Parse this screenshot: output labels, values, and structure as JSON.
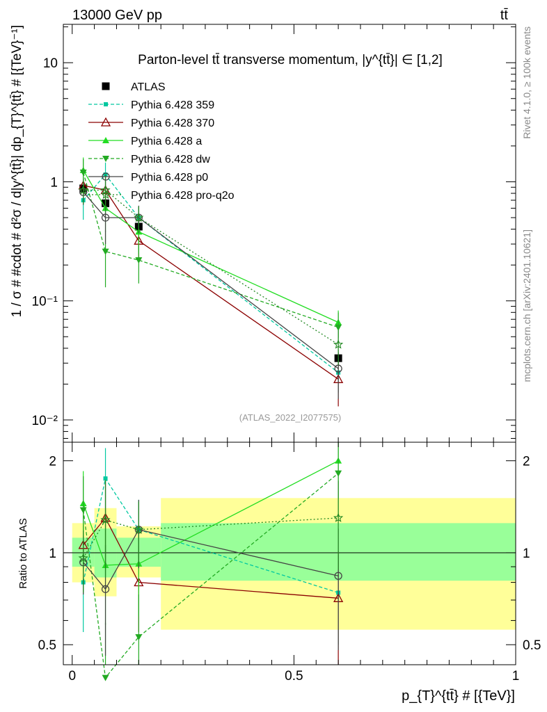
{
  "header": {
    "energy_label": "13000 GeV pp",
    "process_label": "tt̄",
    "rivet_label": "Rivet 4.1.0, ≥ 100k events",
    "mcplots_label": "mcplots.cern.ch [arXiv:2401.10621]",
    "analysis_id": "(ATLAS_2022_I2077575)"
  },
  "colors": {
    "ATLAS": "#000000",
    "p359": "#00c8a0",
    "p370": "#8b0000",
    "pa": "#22dd22",
    "pdw": "#22aa22",
    "pp0": "#444444",
    "pq2o": "#228822",
    "band_yellow": "#ffff99",
    "band_green": "#99ff99"
  },
  "chart_data": [
    {
      "panel": "main",
      "type": "line",
      "title": "Parton-level tt̄ transverse momentum, |y^{tt̄}| ∈ [1,2]",
      "ylabel": "1 / σ # #cdot # d²σ / d|y^{tt̄}| dp_{T}^{tt̄} # [{TeV}⁻¹]",
      "yscale": "log",
      "ylim": [
        0.0065,
        21
      ],
      "xlim": [
        -0.02,
        1.0
      ],
      "ytick_labels": [
        "10⁻²",
        "10⁻¹",
        "1",
        "10"
      ],
      "ytick_values": [
        0.01,
        0.1,
        1,
        10
      ],
      "x": [
        0.025,
        0.075,
        0.15,
        0.6
      ],
      "series": [
        {
          "name": "ATLAS",
          "values": [
            0.88,
            0.66,
            0.42,
            0.033
          ],
          "errors": [
            0.06,
            0.06,
            0.04,
            0.004
          ]
        },
        {
          "name": "Pythia 6.428 359",
          "values": [
            0.7,
            1.15,
            0.5,
            0.025
          ],
          "errors": [
            0.22,
            0.3,
            0.12,
            0.008
          ]
        },
        {
          "name": "Pythia 6.428 370",
          "values": [
            0.93,
            0.85,
            0.32,
            0.022
          ],
          "errors": [
            0.15,
            0.25,
            0.1,
            0.009
          ]
        },
        {
          "name": "Pythia 6.428 a",
          "values": [
            1.25,
            0.6,
            0.38,
            0.066
          ],
          "errors": [
            0.35,
            0.22,
            0.13,
            0.017
          ]
        },
        {
          "name": "Pythia 6.428 dw",
          "values": [
            1.2,
            0.26,
            0.22,
            0.06
          ],
          "errors": [
            0.35,
            0.13,
            0.08,
            0.02
          ]
        },
        {
          "name": "Pythia 6.428 p0",
          "values": [
            0.82,
            0.5,
            0.5,
            0.027
          ],
          "errors": [
            0.18,
            0.2,
            0.13,
            0.012
          ]
        },
        {
          "name": "Pythia 6.428 pro-q2o",
          "values": [
            0.85,
            0.85,
            0.5,
            0.043
          ],
          "errors": [
            0.2,
            0.3,
            0.12,
            0.014
          ]
        }
      ]
    },
    {
      "panel": "ratio",
      "type": "line",
      "ylabel": "Ratio to ATLAS",
      "xlabel": "p_{T}^{tt̄} # [{TeV}]",
      "ylim": [
        0.43,
        2.3
      ],
      "xlim": [
        -0.02,
        1.0
      ],
      "ytick_labels": [
        "0.5",
        "1",
        "2"
      ],
      "ytick_values": [
        0.5,
        1,
        2
      ],
      "xtick_labels": [
        "0",
        "0.5",
        "1"
      ],
      "xtick_values": [
        0,
        0.5,
        1
      ],
      "bands": [
        {
          "x": [
            0.0,
            0.05
          ],
          "yellow": [
            0.8,
            1.25
          ],
          "green": [
            0.9,
            1.12
          ]
        },
        {
          "x": [
            0.05,
            0.1
          ],
          "yellow": [
            0.72,
            1.4
          ],
          "green": [
            0.83,
            1.2
          ]
        },
        {
          "x": [
            0.1,
            0.2
          ],
          "yellow": [
            0.83,
            1.22
          ],
          "green": [
            0.9,
            1.12
          ]
        },
        {
          "x": [
            0.2,
            1.0
          ],
          "yellow": [
            0.56,
            1.51
          ],
          "green": [
            0.81,
            1.25
          ]
        }
      ],
      "x": [
        0.025,
        0.075,
        0.15,
        0.6
      ],
      "series": [
        {
          "name": "Pythia 6.428 359",
          "values": [
            0.8,
            1.75,
            1.19,
            0.74
          ],
          "errors": [
            0.25,
            0.45,
            0.3,
            0.24
          ]
        },
        {
          "name": "Pythia 6.428 370",
          "values": [
            1.06,
            1.3,
            0.8,
            0.71
          ],
          "errors": [
            0.17,
            0.4,
            0.25,
            0.3
          ]
        },
        {
          "name": "Pythia 6.428 a",
          "values": [
            1.45,
            0.91,
            0.92,
            2.0
          ],
          "errors": [
            0.4,
            0.33,
            0.3,
            0.5
          ]
        },
        {
          "name": "Pythia 6.428 dw",
          "values": [
            1.38,
            0.39,
            0.53,
            1.82
          ],
          "errors": [
            0.4,
            0.2,
            0.2,
            0.55
          ]
        },
        {
          "name": "Pythia 6.428 p0",
          "values": [
            0.93,
            0.76,
            1.19,
            0.84
          ],
          "errors": [
            0.2,
            0.3,
            0.3,
            0.36
          ]
        },
        {
          "name": "Pythia 6.428 pro-q2o",
          "values": [
            0.96,
            1.28,
            1.19,
            1.3
          ],
          "errors": [
            0.22,
            0.45,
            0.28,
            0.42
          ]
        }
      ]
    }
  ],
  "legend": [
    {
      "label": "ATLAS",
      "key": "ATLAS",
      "marker": "square",
      "dash": false
    },
    {
      "label": "Pythia 6.428 359",
      "key": "p359",
      "marker": "smallsquare",
      "dash": true
    },
    {
      "label": "Pythia 6.428 370",
      "key": "p370",
      "marker": "opentriangle",
      "dash": false
    },
    {
      "label": "Pythia 6.428 a",
      "key": "pa",
      "marker": "triangle",
      "dash": false
    },
    {
      "label": "Pythia 6.428 dw",
      "key": "pdw",
      "marker": "downtriangle",
      "dash": true
    },
    {
      "label": "Pythia 6.428 p0",
      "key": "pp0",
      "marker": "opencircle",
      "dash": false
    },
    {
      "label": "Pythia 6.428 pro-q2o",
      "key": "pq2o",
      "marker": "openstar",
      "dash": "dot"
    }
  ]
}
